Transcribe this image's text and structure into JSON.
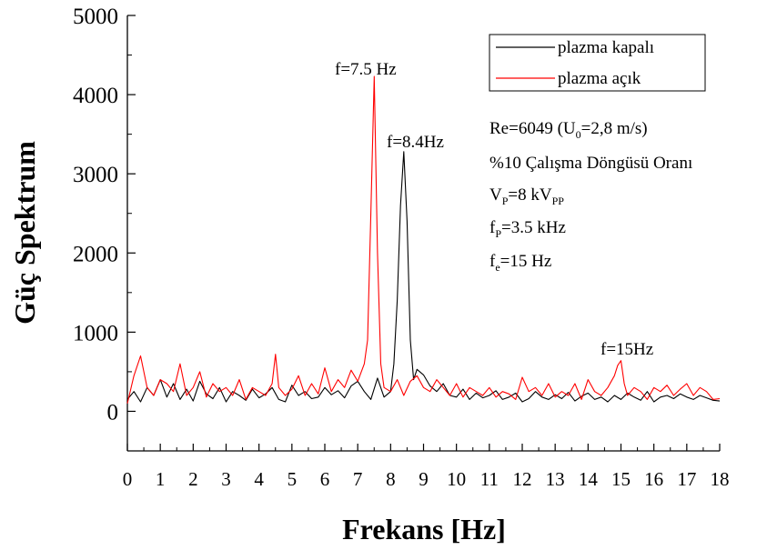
{
  "chart_data": {
    "type": "line",
    "xlabel": "Frekans [Hz]",
    "ylabel": "Güç Spektrum",
    "xlim": [
      0,
      18
    ],
    "ylim": [
      -500,
      5000
    ],
    "xticks": [
      0,
      1,
      2,
      3,
      4,
      5,
      6,
      7,
      8,
      9,
      10,
      11,
      12,
      13,
      14,
      15,
      16,
      17,
      18
    ],
    "xtick_labels": [
      "0",
      "1",
      "2",
      "3",
      "4",
      "5",
      "6",
      "7",
      "8",
      "9",
      "10",
      "11",
      "12",
      "13",
      "14",
      "15",
      "16",
      "17",
      "18"
    ],
    "yticks": [
      0,
      1000,
      2000,
      3000,
      4000,
      5000
    ],
    "ytick_labels": [
      "0",
      "1000",
      "2000",
      "3000",
      "4000",
      "5000"
    ],
    "grid": false,
    "legend_position": "top-right",
    "series": [
      {
        "name": "plazma kapalı",
        "color": "#000000",
        "x": [
          0.0,
          0.2,
          0.4,
          0.6,
          0.8,
          1.0,
          1.2,
          1.4,
          1.6,
          1.8,
          2.0,
          2.2,
          2.4,
          2.6,
          2.8,
          3.0,
          3.2,
          3.4,
          3.6,
          3.8,
          4.0,
          4.2,
          4.4,
          4.6,
          4.8,
          5.0,
          5.2,
          5.4,
          5.6,
          5.8,
          6.0,
          6.2,
          6.4,
          6.6,
          6.8,
          7.0,
          7.2,
          7.4,
          7.6,
          7.8,
          8.0,
          8.1,
          8.2,
          8.3,
          8.4,
          8.5,
          8.6,
          8.7,
          8.8,
          9.0,
          9.2,
          9.4,
          9.6,
          9.8,
          10.0,
          10.2,
          10.4,
          10.6,
          10.8,
          11.0,
          11.2,
          11.4,
          11.6,
          11.8,
          12.0,
          12.2,
          12.4,
          12.6,
          12.8,
          13.0,
          13.2,
          13.4,
          13.6,
          13.8,
          14.0,
          14.2,
          14.4,
          14.6,
          14.8,
          15.0,
          15.2,
          15.4,
          15.6,
          15.8,
          16.0,
          16.2,
          16.4,
          16.6,
          16.8,
          17.0,
          17.2,
          17.4,
          17.6,
          17.8,
          18.0
        ],
        "y": [
          150,
          250,
          120,
          300,
          200,
          400,
          180,
          350,
          150,
          280,
          130,
          380,
          220,
          160,
          300,
          120,
          250,
          200,
          140,
          280,
          170,
          220,
          300,
          150,
          120,
          330,
          200,
          250,
          160,
          180,
          300,
          210,
          260,
          170,
          320,
          380,
          250,
          150,
          420,
          180,
          250,
          600,
          1400,
          2600,
          3280,
          2400,
          900,
          400,
          530,
          460,
          320,
          250,
          350,
          200,
          180,
          280,
          150,
          230,
          170,
          200,
          260,
          150,
          180,
          230,
          120,
          160,
          250,
          180,
          150,
          210,
          160,
          240,
          130,
          190,
          230,
          150,
          180,
          120,
          200,
          150,
          230,
          180,
          140,
          250,
          120,
          180,
          200,
          160,
          220,
          180,
          150,
          200,
          170,
          140,
          130
        ]
      },
      {
        "name": "plazma açık",
        "color": "#ff0000",
        "x": [
          0.0,
          0.2,
          0.4,
          0.6,
          0.8,
          1.0,
          1.2,
          1.4,
          1.6,
          1.8,
          2.0,
          2.2,
          2.4,
          2.6,
          2.8,
          3.0,
          3.2,
          3.4,
          3.6,
          3.8,
          4.0,
          4.2,
          4.4,
          4.5,
          4.6,
          4.8,
          5.0,
          5.2,
          5.4,
          5.6,
          5.8,
          6.0,
          6.2,
          6.4,
          6.6,
          6.8,
          7.0,
          7.2,
          7.3,
          7.4,
          7.5,
          7.6,
          7.7,
          7.8,
          8.0,
          8.2,
          8.4,
          8.6,
          8.8,
          9.0,
          9.2,
          9.4,
          9.6,
          9.8,
          10.0,
          10.2,
          10.4,
          10.6,
          10.8,
          11.0,
          11.2,
          11.4,
          11.6,
          11.8,
          12.0,
          12.2,
          12.4,
          12.6,
          12.8,
          13.0,
          13.2,
          13.4,
          13.6,
          13.8,
          14.0,
          14.2,
          14.4,
          14.6,
          14.8,
          14.9,
          15.0,
          15.1,
          15.2,
          15.4,
          15.6,
          15.8,
          16.0,
          16.2,
          16.4,
          16.6,
          16.8,
          17.0,
          17.2,
          17.4,
          17.6,
          17.8,
          18.0
        ],
        "y": [
          100,
          450,
          700,
          300,
          200,
          400,
          350,
          250,
          600,
          200,
          300,
          500,
          180,
          350,
          250,
          300,
          200,
          400,
          150,
          300,
          250,
          200,
          350,
          720,
          300,
          200,
          280,
          450,
          200,
          350,
          220,
          550,
          250,
          400,
          300,
          520,
          380,
          600,
          900,
          2500,
          4230,
          2000,
          600,
          300,
          250,
          400,
          200,
          380,
          450,
          300,
          250,
          400,
          300,
          200,
          350,
          180,
          300,
          250,
          200,
          300,
          180,
          250,
          220,
          150,
          430,
          250,
          300,
          200,
          350,
          180,
          250,
          200,
          350,
          150,
          400,
          250,
          200,
          300,
          450,
          580,
          640,
          350,
          200,
          300,
          250,
          150,
          300,
          250,
          330,
          200,
          280,
          350,
          200,
          300,
          250,
          150,
          160
        ]
      }
    ],
    "annotations": [
      {
        "text": "f=7.5 Hz"
      },
      {
        "text": "f=8.4Hz"
      },
      {
        "text": "f=15Hz"
      }
    ],
    "info_lines": [
      "Re=6049 (U",
      "0",
      "=2,8 m/s)",
      "%10 Çalışma Döngüsü Oranı",
      "V",
      "P",
      "=8 kV",
      "PP",
      "f",
      "P",
      "=3.5 kHz",
      "f",
      "e",
      "=15 Hz"
    ]
  }
}
